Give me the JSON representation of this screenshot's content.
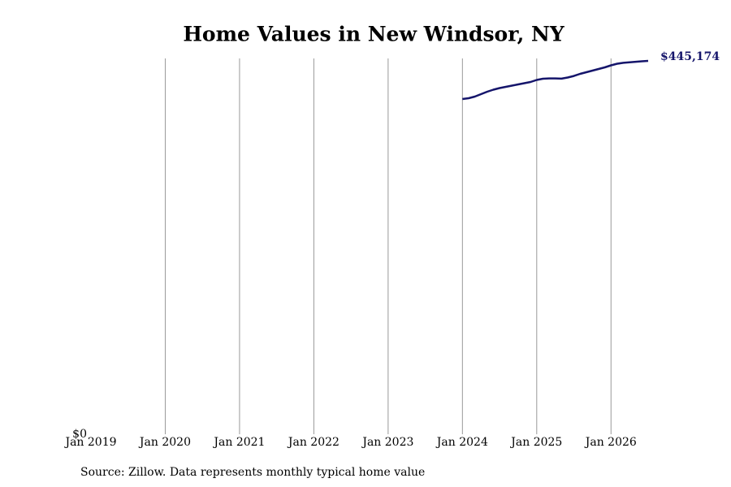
{
  "chart_data": {
    "type": "line",
    "title": "Home Values in New Windsor, NY",
    "source": "Source: Zillow. Data represents monthly typical home value",
    "x": [
      "2024-01",
      "2024-02",
      "2024-03",
      "2024-04",
      "2024-05",
      "2024-06",
      "2024-07",
      "2024-08",
      "2024-09",
      "2024-10",
      "2024-11",
      "2024-12",
      "2025-01",
      "2025-02",
      "2025-03",
      "2025-04",
      "2025-05",
      "2025-06",
      "2025-07",
      "2025-08",
      "2025-09",
      "2025-10",
      "2025-11",
      "2025-12",
      "2026-01",
      "2026-02",
      "2026-03",
      "2026-04",
      "2026-05",
      "2026-06",
      "2026-07"
    ],
    "series": [
      {
        "name": "New Windsor, NY",
        "color": "#15156b",
        "values": [
          399700,
          400600,
          402600,
          405500,
          408400,
          410800,
          412700,
          414200,
          415600,
          417100,
          418500,
          420000,
          422400,
          423900,
          424300,
          424300,
          424000,
          425300,
          427200,
          429700,
          431600,
          433500,
          435500,
          437400,
          439800,
          441800,
          442800,
          443500,
          444100,
          444700,
          445174
        ],
        "value_labels": [
          null,
          null,
          null,
          null,
          null,
          null,
          null,
          null,
          null,
          null,
          null,
          null,
          null,
          null,
          null,
          null,
          null,
          null,
          null,
          null,
          null,
          null,
          null,
          null,
          null,
          null,
          null,
          null,
          null,
          null,
          "$445,174"
        ]
      }
    ],
    "xlim": [
      "2019-01",
      "2026-07"
    ],
    "xticks": [
      {
        "value": "2019-01",
        "label": "Jan 2019"
      },
      {
        "value": "2020-01",
        "label": "Jan 2020"
      },
      {
        "value": "2021-01",
        "label": "Jan 2021"
      },
      {
        "value": "2022-01",
        "label": "Jan 2022"
      },
      {
        "value": "2023-01",
        "label": "Jan 2023"
      },
      {
        "value": "2024-01",
        "label": "Jan 2024"
      },
      {
        "value": "2025-01",
        "label": "Jan 2025"
      },
      {
        "value": "2026-01",
        "label": "Jan 2026"
      }
    ],
    "ylim": [
      0,
      450000
    ],
    "yticks": [
      {
        "value": 0,
        "label": "$0"
      }
    ],
    "grid": true
  }
}
